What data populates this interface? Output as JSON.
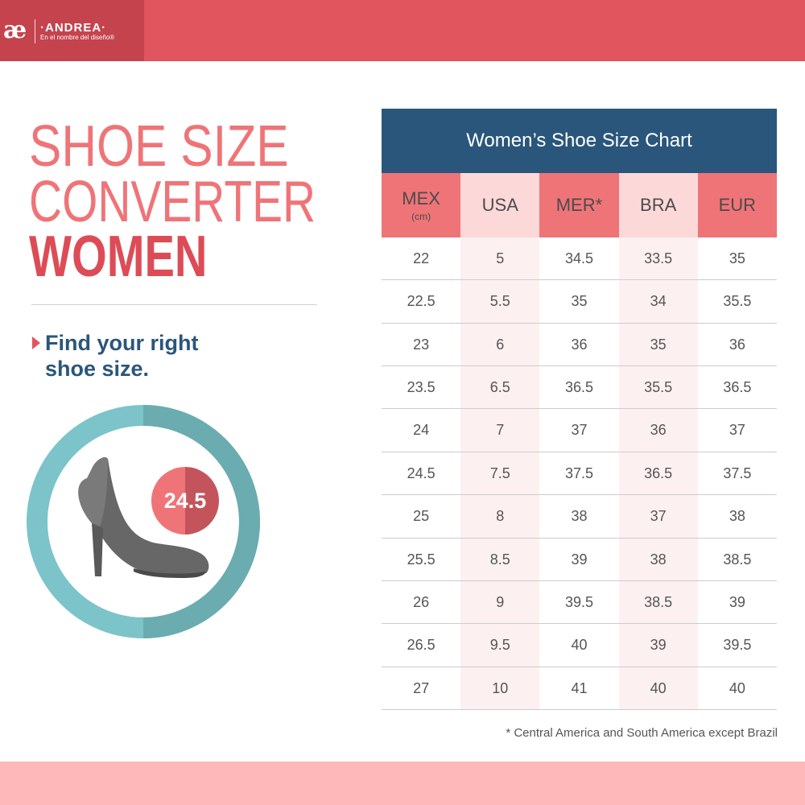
{
  "brand": {
    "mark": "æ",
    "name": "·ANDREA·",
    "tagline": "En el nombre del diseño®"
  },
  "colors": {
    "brand_red": "#e1555f",
    "title_coral": "#ef7478",
    "navy": "#2a567b",
    "teal": "#7cc4c9",
    "footer_pink": "#ffb8b9"
  },
  "left": {
    "title_lines": [
      "SHOE SIZE",
      "CONVERTER",
      "WOMEN"
    ],
    "find_text": "Find your right shoe size.",
    "badge_value": "24.5",
    "illustration_icon": "high-heel-shoe-icon"
  },
  "chart_data": {
    "type": "table",
    "title": "Women’s Shoe Size Chart",
    "columns": [
      {
        "label": "MEX",
        "sub": "(cm)"
      },
      {
        "label": "USA",
        "sub": ""
      },
      {
        "label": "MER*",
        "sub": ""
      },
      {
        "label": "BRA",
        "sub": ""
      },
      {
        "label": "EUR",
        "sub": ""
      }
    ],
    "rows": [
      [
        "22",
        "5",
        "34.5",
        "33.5",
        "35"
      ],
      [
        "22.5",
        "5.5",
        "35",
        "34",
        "35.5"
      ],
      [
        "23",
        "6",
        "36",
        "35",
        "36"
      ],
      [
        "23.5",
        "6.5",
        "36.5",
        "35.5",
        "36.5"
      ],
      [
        "24",
        "7",
        "37",
        "36",
        "37"
      ],
      [
        "24.5",
        "7.5",
        "37.5",
        "36.5",
        "37.5"
      ],
      [
        "25",
        "8",
        "38",
        "37",
        "38"
      ],
      [
        "25.5",
        "8.5",
        "39",
        "38",
        "38.5"
      ],
      [
        "26",
        "9",
        "39.5",
        "38.5",
        "39"
      ],
      [
        "26.5",
        "9.5",
        "40",
        "39",
        "39.5"
      ],
      [
        "27",
        "10",
        "41",
        "40",
        "40"
      ]
    ],
    "footnote": "* Central America and South America except Brazil"
  }
}
